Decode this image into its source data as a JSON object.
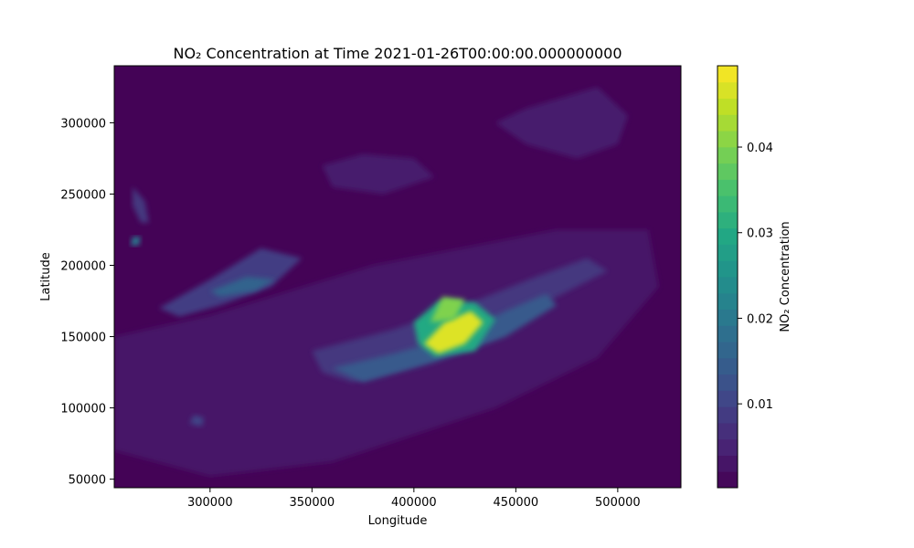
{
  "chart_data": {
    "type": "heatmap",
    "title": "NO₂ Concentration at Time 2021-01-26T00:00:00.000000000",
    "xlabel": "Longitude",
    "ylabel": "Latitude",
    "xlim": [
      253000,
      531000
    ],
    "ylim": [
      44000,
      340000
    ],
    "x_ticks": [
      300000,
      350000,
      400000,
      450000,
      500000
    ],
    "x_tick_labels": [
      "300000",
      "350000",
      "400000",
      "450000",
      "500000"
    ],
    "y_ticks": [
      50000,
      100000,
      150000,
      200000,
      250000,
      300000
    ],
    "y_tick_labels": [
      "50000",
      "100000",
      "150000",
      "200000",
      "250000",
      "300000"
    ],
    "colorbar": {
      "label": "NO₂ Concentration",
      "range": [
        0.0002,
        0.0495
      ],
      "ticks": [
        0.01,
        0.02,
        0.03,
        0.04
      ],
      "tick_labels": [
        "0.01",
        "0.02",
        "0.03",
        "0.04"
      ],
      "colormap": "viridis",
      "levels": 26
    },
    "background_value": 0.0005,
    "features": [
      {
        "name": "broad-haze",
        "points": [
          [
            253000,
            150000
          ],
          [
            300000,
            165000
          ],
          [
            380000,
            200000
          ],
          [
            470000,
            225000
          ],
          [
            515000,
            225000
          ],
          [
            520000,
            185000
          ],
          [
            490000,
            135000
          ],
          [
            440000,
            100000
          ],
          [
            360000,
            62000
          ],
          [
            300000,
            52000
          ],
          [
            253000,
            70000
          ]
        ],
        "value": 0.003
      },
      {
        "name": "northern-haze",
        "points": [
          [
            455000,
            310000
          ],
          [
            490000,
            325000
          ],
          [
            505000,
            305000
          ],
          [
            500000,
            285000
          ],
          [
            480000,
            275000
          ],
          [
            455000,
            285000
          ],
          [
            440000,
            300000
          ]
        ],
        "value": 0.004
      },
      {
        "name": "northern-patch",
        "points": [
          [
            355000,
            270000
          ],
          [
            375000,
            278000
          ],
          [
            400000,
            275000
          ],
          [
            410000,
            262000
          ],
          [
            385000,
            250000
          ],
          [
            360000,
            255000
          ]
        ],
        "value": 0.004
      },
      {
        "name": "western-plume",
        "points": [
          [
            275000,
            170000
          ],
          [
            300000,
            190000
          ],
          [
            325000,
            212000
          ],
          [
            345000,
            205000
          ],
          [
            330000,
            185000
          ],
          [
            305000,
            172000
          ],
          [
            285000,
            164000
          ]
        ],
        "value": 0.009
      },
      {
        "name": "western-plume-core",
        "points": [
          [
            300000,
            182000
          ],
          [
            318000,
            192000
          ],
          [
            332000,
            190000
          ],
          [
            322000,
            182000
          ],
          [
            305000,
            178000
          ]
        ],
        "value": 0.016
      },
      {
        "name": "central-band",
        "points": [
          [
            350000,
            140000
          ],
          [
            390000,
            155000
          ],
          [
            430000,
            175000
          ],
          [
            460000,
            192000
          ],
          [
            485000,
            205000
          ],
          [
            495000,
            196000
          ],
          [
            470000,
            178000
          ],
          [
            440000,
            150000
          ],
          [
            400000,
            130000
          ],
          [
            370000,
            118000
          ],
          [
            355000,
            125000
          ]
        ],
        "value": 0.008
      },
      {
        "name": "central-band-inner",
        "points": [
          [
            360000,
            128000
          ],
          [
            390000,
            138000
          ],
          [
            420000,
            150000
          ],
          [
            445000,
            168000
          ],
          [
            465000,
            180000
          ],
          [
            470000,
            172000
          ],
          [
            445000,
            150000
          ],
          [
            410000,
            132000
          ],
          [
            375000,
            118000
          ]
        ],
        "value": 0.014
      },
      {
        "name": "hotspot-outer",
        "points": [
          [
            400000,
            160000
          ],
          [
            412000,
            175000
          ],
          [
            430000,
            174000
          ],
          [
            440000,
            162000
          ],
          [
            430000,
            140000
          ],
          [
            410000,
            136000
          ],
          [
            402000,
            145000
          ]
        ],
        "value": 0.03
      },
      {
        "name": "hotspot-core",
        "points": [
          [
            405000,
            145000
          ],
          [
            415000,
            160000
          ],
          [
            428000,
            168000
          ],
          [
            434000,
            160000
          ],
          [
            425000,
            145000
          ],
          [
            412000,
            138000
          ]
        ],
        "value": 0.047
      },
      {
        "name": "hotspot-north",
        "points": [
          [
            408000,
            160000
          ],
          [
            414000,
            178000
          ],
          [
            425000,
            176000
          ],
          [
            420000,
            162000
          ]
        ],
        "value": 0.04
      },
      {
        "name": "west-coast-streak",
        "points": [
          [
            262000,
            255000
          ],
          [
            268000,
            245000
          ],
          [
            270000,
            230000
          ],
          [
            266000,
            230000
          ],
          [
            262000,
            242000
          ]
        ],
        "value": 0.008
      },
      {
        "name": "west-coast-spot",
        "points": [
          [
            262000,
            220000
          ],
          [
            266000,
            220000
          ],
          [
            265000,
            214000
          ],
          [
            261000,
            214000
          ]
        ],
        "value": 0.02
      },
      {
        "name": "southwest-spots",
        "points": [
          [
            292000,
            95000
          ],
          [
            297000,
            93000
          ],
          [
            296000,
            87000
          ],
          [
            290000,
            89000
          ]
        ],
        "value": 0.01
      }
    ]
  }
}
